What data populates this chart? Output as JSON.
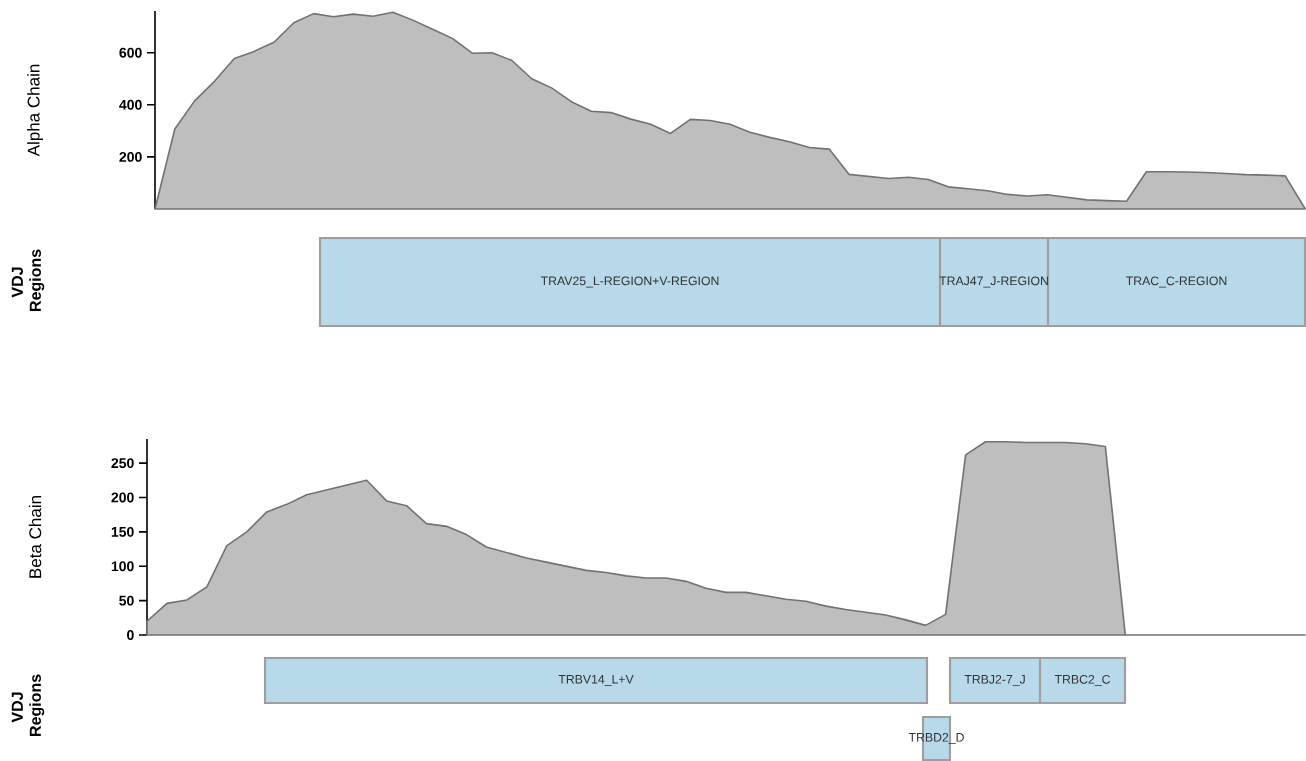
{
  "chart_data": [
    {
      "type": "area",
      "ylabel": "Alpha Chain",
      "tick_labels": "y",
      "color": "#bebebe",
      "ylim": [
        0,
        760
      ],
      "yticks": [
        200,
        400,
        600
      ],
      "categories": [
        null,
        null,
        null,
        null,
        null,
        null,
        null,
        null,
        null,
        null,
        null,
        null,
        null,
        null,
        null,
        null,
        null,
        null,
        null,
        null,
        null,
        null,
        null,
        null,
        null,
        null,
        null,
        null,
        null,
        null,
        null,
        null,
        null,
        null,
        null,
        null,
        null,
        null,
        null,
        null,
        null,
        null,
        null,
        null,
        null,
        null,
        null,
        null,
        null,
        null,
        null,
        null,
        null,
        null,
        null,
        null,
        null,
        null,
        null
      ],
      "values": [
        0,
        307,
        415,
        490,
        578,
        605,
        640,
        715,
        750,
        738,
        748,
        740,
        755,
        725,
        690,
        655,
        598,
        600,
        570,
        500,
        465,
        412,
        375,
        370,
        345,
        325,
        290,
        344,
        340,
        325,
        295,
        275,
        258,
        236,
        230,
        133,
        125,
        117,
        122,
        113,
        85,
        78,
        70,
        56,
        50,
        55,
        45,
        35,
        32,
        30,
        143,
        143,
        142,
        140,
        136,
        132,
        130,
        127,
        2
      ]
    },
    {
      "type": "other",
      "ylabel": "VDJ Regions",
      "annotations": [
        "TRAV25_L-REGION+V-REGION",
        "TRAJ47_J-REGION",
        "TRAC_C-REGION"
      ]
    },
    {
      "type": "area",
      "ylabel": "Beta Chain",
      "tick_labels": "y",
      "color": "#bebebe",
      "ylim": [
        0,
        285
      ],
      "yticks": [
        0,
        50,
        100,
        150,
        200,
        250
      ],
      "categories": [
        null,
        null,
        null,
        null,
        null,
        null,
        null,
        null,
        null,
        null,
        null,
        null,
        null,
        null,
        null,
        null,
        null,
        null,
        null,
        null,
        null,
        null,
        null,
        null,
        null,
        null,
        null,
        null,
        null,
        null,
        null,
        null,
        null,
        null,
        null,
        null,
        null,
        null,
        null,
        null,
        null,
        null,
        null,
        null,
        null,
        null,
        null,
        null,
        null,
        null,
        null,
        null,
        null,
        null,
        null,
        null,
        null,
        null,
        null
      ],
      "values": [
        20,
        46,
        51,
        70,
        130,
        150,
        179,
        190,
        204,
        211,
        218,
        225,
        195,
        188,
        162,
        158,
        146,
        128,
        120,
        112,
        106,
        100,
        94,
        91,
        86,
        83,
        83,
        78,
        68,
        62,
        62,
        57,
        52,
        49,
        42,
        37,
        33,
        29,
        22,
        14,
        30,
        262,
        281,
        281,
        280,
        280,
        280,
        278,
        274,
        0,
        0,
        0,
        0,
        0,
        0,
        0,
        0,
        0,
        0
      ]
    },
    {
      "type": "other",
      "ylabel": "VDJ Regions",
      "annotations": [
        "TRBV14_L+V",
        "TRBD2_D",
        "TRBJ2-7_J",
        "TRBC2_C"
      ]
    }
  ]
}
